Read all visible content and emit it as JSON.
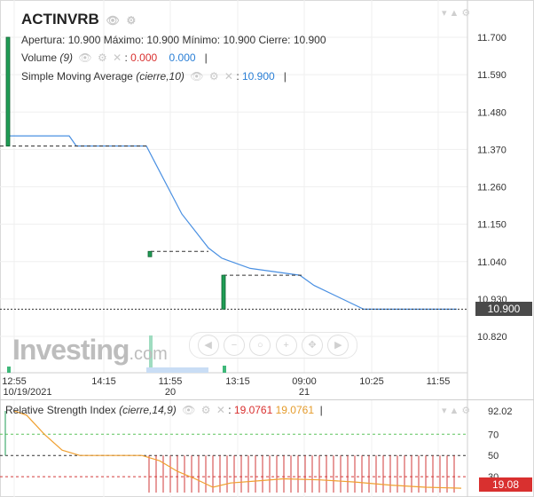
{
  "header": {
    "symbol": "ACTINVRB",
    "ohlc_text": "Apertura: 10.900  Máximo: 10.900  Mínimo: 10.900  Cierre: 10.900",
    "volume": {
      "label": "Volume",
      "param": "(9)",
      "value1": "0.000",
      "value2": "0.000"
    },
    "sma": {
      "label": "Simple Moving Average",
      "param": "(cierre,10)",
      "value": "10.900"
    }
  },
  "price_axis": {
    "ticks": [
      "11.700",
      "11.590",
      "11.480",
      "11.370",
      "11.260",
      "11.150",
      "11.040",
      "10.930",
      "10.820"
    ],
    "current": "10.900"
  },
  "time_axis": {
    "labels": [
      {
        "time": "12:55",
        "date": "10/19/2021"
      },
      {
        "time": "14:15",
        "date": ""
      },
      {
        "time": "11:55",
        "date": "20"
      },
      {
        "time": "13:15",
        "date": ""
      },
      {
        "time": "09:00",
        "date": "21"
      },
      {
        "time": "10:25",
        "date": ""
      },
      {
        "time": "11:55",
        "date": ""
      }
    ]
  },
  "logo": {
    "main": "Investing",
    "suffix": ".com"
  },
  "rsi": {
    "label": "Relative Strength Index",
    "param": "(cierre,14,9)",
    "value1": "19.0761",
    "value2": "19.0761",
    "ticks": [
      "92.02",
      "70",
      "50",
      "30"
    ],
    "current": "19.08"
  },
  "colors": {
    "sma_line": "#4a90e2",
    "rsi_line": "#f0a030",
    "signal_bars": "#d23a3a",
    "candle": "#1f9d55"
  },
  "chart_data": {
    "type": "line",
    "ylim": [
      10.82,
      11.75
    ],
    "sma_series": [
      {
        "x": "12:55",
        "y": 11.41
      },
      {
        "x": "13:40",
        "y": 11.41
      },
      {
        "x": "14:00",
        "y": 11.38
      },
      {
        "x": "15:00",
        "y": 11.38
      },
      {
        "x": "11:40",
        "y": 11.38
      },
      {
        "x": "12:00",
        "y": 11.33
      },
      {
        "x": "12:40",
        "y": 11.18
      },
      {
        "x": "13:00",
        "y": 11.08
      },
      {
        "x": "13:15",
        "y": 11.05
      },
      {
        "x": "13:45",
        "y": 11.02
      },
      {
        "x": "09:00",
        "y": 11.0
      },
      {
        "x": "09:30",
        "y": 10.97
      },
      {
        "x": "10:25",
        "y": 10.9
      },
      {
        "x": "11:55",
        "y": 10.9
      }
    ],
    "candles": [
      {
        "x": "12:55",
        "open": 11.38,
        "close": 11.7
      },
      {
        "x": "12:00",
        "open": 11.06,
        "close": 11.07
      },
      {
        "x": "13:00",
        "open": 10.9,
        "close": 11.0
      }
    ],
    "rsi_series": [
      92.02,
      88,
      70,
      55,
      50,
      50,
      50,
      45,
      35,
      28,
      20,
      24,
      26,
      28,
      27,
      25,
      22,
      20,
      19.08
    ]
  }
}
